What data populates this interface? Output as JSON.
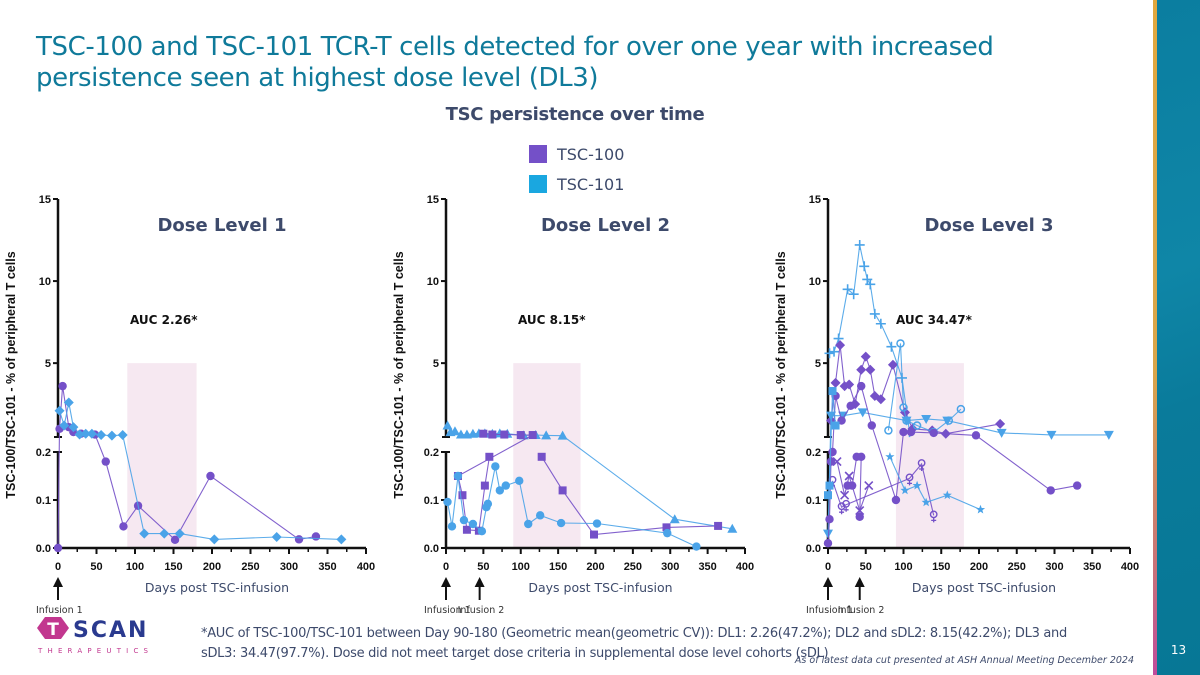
{
  "slide": {
    "title": "TSC-100 and TSC-101 TCR-T cells detected for over one year with increased persistence seen at highest dose level (DL3)",
    "subtitle": "TSC persistence over time",
    "page_number": "13",
    "footnote": "*AUC of TSC-100/TSC-101 between Day 90-180 (Geometric mean(geometric CV)): DL1: 2.26(47.2%); DL2 and sDL2: 8.15(42.2%); DL3 and sDL3: 34.47(97.7%). Dose did not meet target dose criteria in supplemental dose level cohorts (sDL)",
    "data_cut_note": "As of latest data cut presented at ASH Annual Meeting December 2024",
    "logo": {
      "name": "SCAN",
      "initial": "T",
      "tagline": "THERAPEUTICS"
    },
    "colors": {
      "title": "#0f7a9a",
      "tsc100": "#7450c8",
      "tsc101": "#4aa3e8",
      "legend_tsc101": "#1aa7e0",
      "highlight": "#f6e8f1",
      "text": "#3d4a6b"
    }
  },
  "legend": [
    {
      "label": "TSC-100",
      "color": "#7450c8"
    },
    {
      "label": "TSC-101",
      "color": "#1aa7e0"
    }
  ],
  "chart_data": [
    {
      "type": "line",
      "title": "Dose Level 1",
      "annotation": "AUC 2.26*",
      "xlabel": "Days post TSC-infusion",
      "ylabel": "TSC-100/TSC-101 - % of peripheral T cells",
      "xlim": [
        0,
        400
      ],
      "xticks": [
        "0",
        "50",
        "100",
        "150",
        "200",
        "250",
        "300",
        "350",
        "400"
      ],
      "ylim_lower": [
        0,
        0.2
      ],
      "ylim_upper": [
        0.5,
        15
      ],
      "yticks_lower": [
        "0.0",
        "0.1",
        "0.2"
      ],
      "yticks_upper": [
        "5",
        "10",
        "15"
      ],
      "highlight_window_days": [
        90,
        180
      ],
      "highlight_top": 5,
      "infusions": [
        "Infusion 1"
      ],
      "infusion_days": [
        0
      ],
      "series": [
        {
          "name": "TSC-100",
          "product": "TSC-100",
          "marker": "circle",
          "points": [
            [
              0,
              0
            ],
            [
              2,
              1.0
            ],
            [
              6,
              3.6
            ],
            [
              14,
              1.1
            ],
            [
              20,
              0.8
            ],
            [
              30,
              0.7
            ],
            [
              48,
              0.65
            ],
            [
              62,
              0.18
            ],
            [
              85,
              0.045
            ],
            [
              104,
              0.088
            ],
            [
              152,
              0.017
            ],
            [
              198,
              0.15
            ],
            [
              313,
              0.018
            ],
            [
              335,
              0.024
            ]
          ]
        },
        {
          "name": "TSC-101 pt1",
          "product": "TSC-101",
          "marker": "diamond",
          "points": [
            [
              2,
              2.1
            ],
            [
              8,
              1.2
            ],
            [
              14,
              2.6
            ],
            [
              20,
              1.1
            ],
            [
              28,
              0.65
            ],
            [
              36,
              0.7
            ],
            [
              44,
              0.7
            ],
            [
              56,
              0.62
            ],
            [
              70,
              0.58
            ],
            [
              84,
              0.62
            ],
            [
              112,
              0.03
            ],
            [
              138,
              0.03
            ],
            [
              158,
              0.03
            ],
            [
              203,
              0.018
            ],
            [
              284,
              0.023
            ],
            [
              368,
              0.018
            ]
          ]
        }
      ]
    },
    {
      "type": "line",
      "title": "Dose Level 2",
      "annotation": "AUC 8.15*",
      "xlabel": "Days post TSC-infusion",
      "ylabel": "TSC-100/TSC-101 - % of peripheral T cells",
      "xlim": [
        0,
        400
      ],
      "xticks": [
        "0",
        "50",
        "100",
        "150",
        "200",
        "250",
        "300",
        "350",
        "400"
      ],
      "ylim_lower": [
        0,
        0.2
      ],
      "ylim_upper": [
        0.5,
        15
      ],
      "yticks_lower": [
        "0.0",
        "0.1",
        "0.2"
      ],
      "yticks_upper": [
        "5",
        "10",
        "15"
      ],
      "highlight_window_days": [
        90,
        180
      ],
      "highlight_top": 5,
      "infusions": [
        "Infusion 1",
        "Infusion 2"
      ],
      "infusion_days": [
        0,
        45
      ],
      "series": [
        {
          "name": "TSC-101 pt1",
          "product": "TSC-101",
          "marker": "triangle",
          "points": [
            [
              2,
              1.2
            ],
            [
              6,
              0.8
            ],
            [
              12,
              0.85
            ],
            [
              20,
              0.65
            ],
            [
              28,
              0.65
            ],
            [
              36,
              0.7
            ],
            [
              44,
              0.72
            ],
            [
              52,
              0.72
            ],
            [
              62,
              0.7
            ],
            [
              72,
              0.72
            ],
            [
              82,
              0.7
            ],
            [
              104,
              0.6
            ],
            [
              120,
              0.62
            ],
            [
              134,
              0.6
            ],
            [
              156,
              0.58
            ],
            [
              306,
              0.06
            ],
            [
              383,
              0.04
            ]
          ]
        },
        {
          "name": "TSC-100 pt1",
          "product": "TSC-100",
          "marker": "square",
          "points": [
            [
              50,
              0.7
            ],
            [
              62,
              0.65
            ],
            [
              78,
              0.65
            ],
            [
              100,
              0.62
            ],
            [
              116,
              0.62
            ],
            [
              16,
              0.15
            ],
            [
              22,
              0.11
            ],
            [
              28,
              0.038
            ],
            [
              44,
              0.036
            ],
            [
              52,
              0.13
            ],
            [
              58,
              0.19
            ]
          ]
        },
        {
          "name": "TSC-100 pt2",
          "product": "TSC-100",
          "marker": "square",
          "points": [
            [
              128,
              0.19
            ],
            [
              156,
              0.12
            ],
            [
              198,
              0.028
            ],
            [
              295,
              0.043
            ],
            [
              364,
              0.046
            ]
          ]
        },
        {
          "name": "TSC-101 pt2",
          "product": "TSC-101",
          "marker": "circle",
          "points": [
            [
              2,
              0.096
            ],
            [
              8,
              0.045
            ],
            [
              16,
              0.15
            ],
            [
              24,
              0.058
            ],
            [
              36,
              0.05
            ],
            [
              48,
              0.035
            ],
            [
              54,
              0.085
            ],
            [
              56,
              0.092
            ],
            [
              66,
              0.17
            ],
            [
              72,
              0.12
            ],
            [
              80,
              0.13
            ],
            [
              98,
              0.14
            ],
            [
              110,
              0.05
            ],
            [
              126,
              0.068
            ],
            [
              154,
              0.052
            ],
            [
              202,
              0.051
            ],
            [
              296,
              0.031
            ],
            [
              335,
              0.003
            ]
          ]
        }
      ]
    },
    {
      "type": "line",
      "title": "Dose Level 3",
      "annotation": "AUC 34.47*",
      "xlabel": "Days post TSC-infusion",
      "ylabel": "TSC-100/TSC-101 - % of peripheral T cells",
      "xlim": [
        0,
        400
      ],
      "xticks": [
        "0",
        "50",
        "100",
        "150",
        "200",
        "250",
        "300",
        "350",
        "400"
      ],
      "ylim_lower": [
        0,
        0.2
      ],
      "ylim_upper": [
        0.5,
        15
      ],
      "yticks_lower": [
        "0.0",
        "0.1",
        "0.2"
      ],
      "yticks_upper": [
        "5",
        "10",
        "15"
      ],
      "highlight_window_days": [
        90,
        180
      ],
      "highlight_top": 5,
      "infusions": [
        "Infusion 1",
        "Infusion 2"
      ],
      "infusion_days": [
        0,
        42
      ],
      "series": [
        {
          "name": "TSC-101 plus",
          "product": "TSC-101",
          "marker": "plus",
          "points": [
            [
              2,
              5.6
            ],
            [
              8,
              5.7
            ],
            [
              14,
              6.5
            ],
            [
              26,
              9.5
            ],
            [
              34,
              9.2
            ],
            [
              42,
              12.2
            ],
            [
              48,
              10.9
            ],
            [
              52,
              10.1
            ],
            [
              56,
              9.8
            ],
            [
              62,
              8.0
            ],
            [
              70,
              7.4
            ],
            [
              84,
              6.0
            ],
            [
              98,
              4.1
            ],
            [
              108,
              0.8
            ]
          ]
        },
        {
          "name": "TSC-100 diamond",
          "product": "TSC-100",
          "marker": "diamond",
          "points": [
            [
              4,
              1.5
            ],
            [
              10,
              3.8
            ],
            [
              16,
              6.1
            ],
            [
              22,
              3.6
            ],
            [
              28,
              3.7
            ],
            [
              36,
              2.5
            ],
            [
              44,
              4.6
            ],
            [
              50,
              5.4
            ],
            [
              56,
              4.6
            ],
            [
              62,
              3.0
            ],
            [
              70,
              2.8
            ],
            [
              86,
              4.9
            ],
            [
              102,
              2.0
            ],
            [
              112,
              1.0
            ],
            [
              138,
              0.9
            ],
            [
              156,
              0.7
            ],
            [
              228,
              1.3
            ]
          ]
        },
        {
          "name": "TSC-101 male",
          "product": "TSC-101",
          "marker": "ring",
          "points": [
            [
              80,
              0.9
            ],
            [
              96,
              6.2
            ],
            [
              100,
              2.3
            ],
            [
              104,
              1.5
            ],
            [
              118,
              1.2
            ],
            [
              140,
              0.8
            ],
            [
              160,
              1.5
            ],
            [
              176,
              2.2
            ]
          ]
        },
        {
          "name": "TSC-101 triangle-down",
          "product": "TSC-101",
          "marker": "triangle-down",
          "points": [
            [
              0,
              0.03
            ],
            [
              4,
              1.8
            ],
            [
              20,
              1.8
            ],
            [
              46,
              2.0
            ],
            [
              104,
              1.5
            ],
            [
              130,
              1.6
            ],
            [
              158,
              1.5
            ],
            [
              230,
              0.75
            ],
            [
              296,
              0.63
            ],
            [
              372,
              0.63
            ]
          ]
        },
        {
          "name": "TSC-100 hex",
          "product": "TSC-100",
          "marker": "circle",
          "points": [
            [
              0,
              0.01
            ],
            [
              2,
              0.06
            ],
            [
              4,
              0.18
            ],
            [
              6,
              0.2
            ],
            [
              10,
              3.0
            ],
            [
              18,
              1.5
            ],
            [
              30,
              2.4
            ],
            [
              44,
              3.6
            ],
            [
              58,
              1.2
            ],
            [
              90,
              0.1
            ],
            [
              100,
              0.8
            ],
            [
              110,
              0.8
            ],
            [
              140,
              0.75
            ],
            [
              196,
              0.6
            ],
            [
              295,
              0.12
            ],
            [
              330,
              0.13
            ]
          ]
        },
        {
          "name": "TSC-100 female",
          "product": "TSC-100",
          "marker": "ring-down",
          "points": [
            [
              6,
              0.14
            ],
            [
              18,
              0.085
            ],
            [
              24,
              0.09
            ],
            [
              108,
              0.145
            ],
            [
              124,
              0.175
            ],
            [
              140,
              0.068
            ]
          ]
        },
        {
          "name": "TSC-100 cross",
          "product": "TSC-100",
          "marker": "cross",
          "points": [
            [
              12,
              0.18
            ],
            [
              22,
              0.11
            ],
            [
              28,
              0.15
            ],
            [
              42,
              0.078
            ],
            [
              54,
              0.13
            ]
          ]
        },
        {
          "name": "TSC-101 star",
          "product": "TSC-101",
          "marker": "star",
          "points": [
            [
              82,
              0.19
            ],
            [
              102,
              0.12
            ],
            [
              118,
              0.13
            ],
            [
              130,
              0.095
            ],
            [
              158,
              0.11
            ],
            [
              202,
              0.08
            ]
          ]
        },
        {
          "name": "TSC-100 big-circle",
          "product": "TSC-100",
          "marker": "circle",
          "points": [
            [
              26,
              0.13
            ],
            [
              32,
              0.13
            ],
            [
              38,
              0.19
            ],
            [
              44,
              0.19
            ],
            [
              42,
              0.065
            ]
          ]
        },
        {
          "name": "TSC-101 square",
          "product": "TSC-101",
          "marker": "square",
          "points": [
            [
              0,
              0.11
            ],
            [
              2,
              0.13
            ],
            [
              6,
              3.3
            ],
            [
              10,
              1.2
            ]
          ]
        }
      ]
    }
  ]
}
